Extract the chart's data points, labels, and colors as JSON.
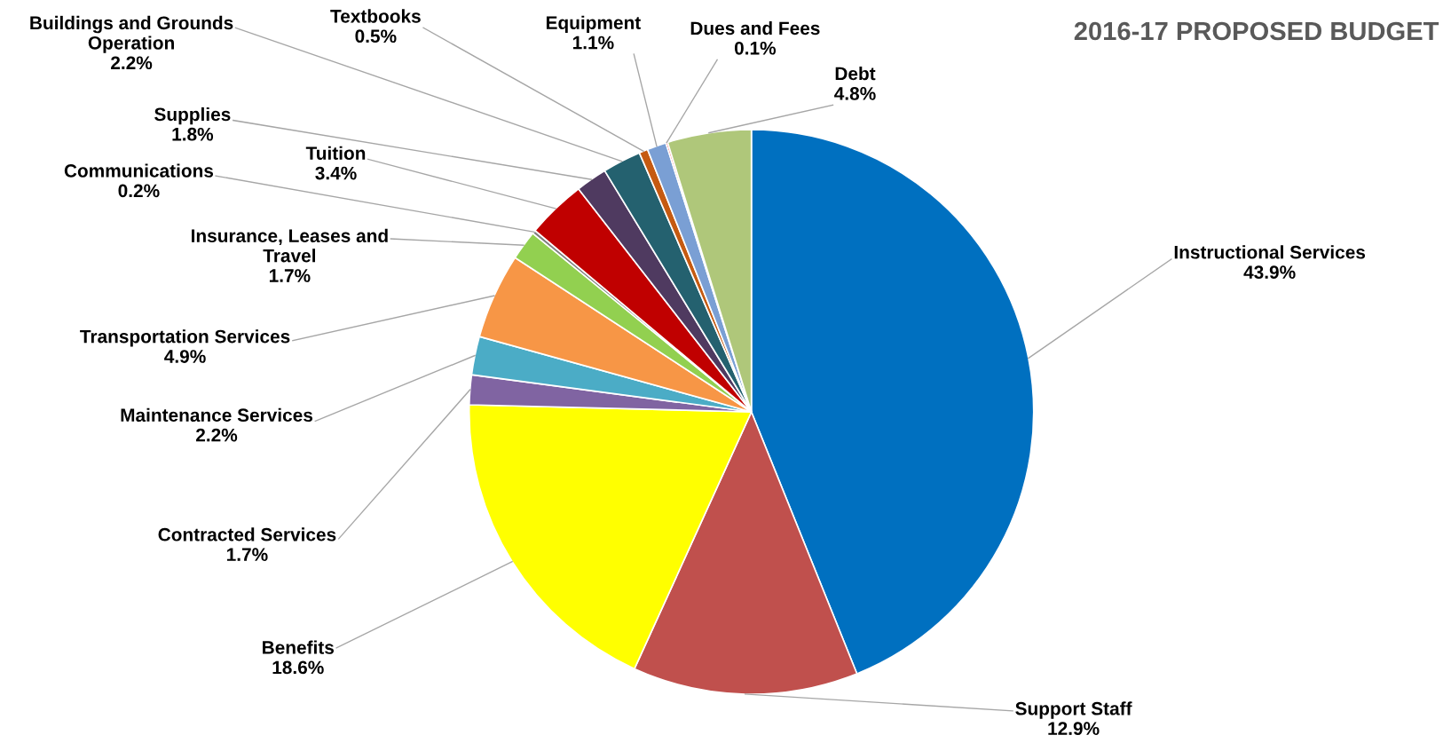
{
  "chart_data": {
    "type": "pie",
    "title": "2016-17 PROPOSED BUDGET",
    "categories": [
      "Instructional Services",
      "Support Staff",
      "Benefits",
      "Contracted Services",
      "Maintenance Services",
      "Transportation Services",
      "Insurance, Leases and\nTravel",
      "Communications",
      "Tuition",
      "Supplies",
      "Buildings and Grounds\nOperation",
      "Textbooks",
      "Equipment",
      "Dues and Fees",
      "Debt"
    ],
    "values": [
      43.9,
      12.9,
      18.6,
      1.7,
      2.2,
      4.9,
      1.7,
      0.2,
      3.4,
      1.8,
      2.2,
      0.5,
      1.1,
      0.1,
      4.8
    ],
    "value_labels": [
      "43.9%",
      "12.9%",
      "18.6%",
      "1.7%",
      "2.2%",
      "4.9%",
      "1.7%",
      "0.2%",
      "3.4%",
      "1.8%",
      "2.2%",
      "0.5%",
      "1.1%",
      "0.1%",
      "4.8%"
    ],
    "colors": [
      "#0070c0",
      "#c0504d",
      "#ffff00",
      "#8064a2",
      "#4bacc6",
      "#f79646",
      "#92d050",
      "#7f7f7f",
      "#c00000",
      "#4f3a60",
      "#24616f",
      "#c55a11",
      "#7a9fd4",
      "#ff0000",
      "#afc77a"
    ]
  }
}
